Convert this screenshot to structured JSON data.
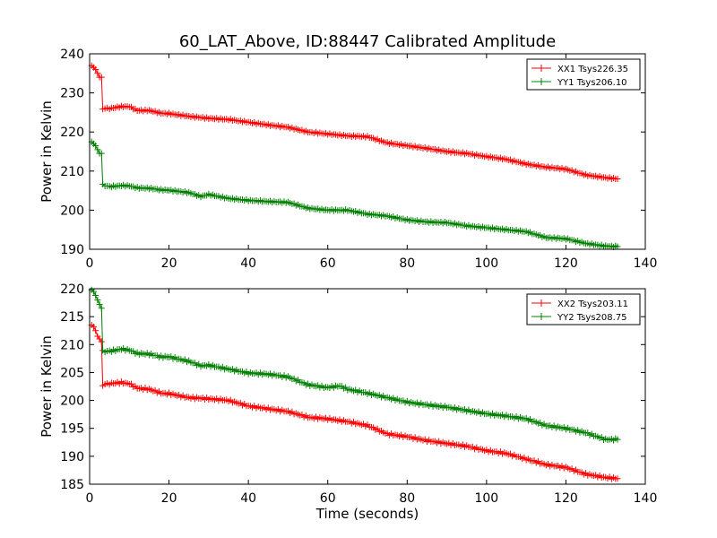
{
  "title": "60_LAT_Above, ID:88447 Calibrated Amplitude",
  "chart_data": [
    {
      "type": "line",
      "title": "60_LAT_Above, ID:88447 Calibrated Amplitude",
      "xlabel": "",
      "ylabel": "Power in Kelvin",
      "xlim": [
        0,
        140
      ],
      "ylim": [
        190,
        240
      ],
      "xticks": [
        "0",
        "20",
        "40",
        "60",
        "80",
        "100",
        "120",
        "140"
      ],
      "yticks": [
        "190",
        "200",
        "210",
        "220",
        "230",
        "240"
      ],
      "grid": false,
      "legend_position": "top-right",
      "series": [
        {
          "name": "XX1 Tsys226.35",
          "color": "#ff0000",
          "marker": "plus",
          "points": [
            [
              0.5,
              237.0
            ],
            [
              1.0,
              236.5
            ],
            [
              1.5,
              236.0
            ],
            [
              2.0,
              235.0
            ],
            [
              2.5,
              234.0
            ],
            [
              3.0,
              234.0
            ],
            [
              3.3,
              226.0
            ],
            [
              5,
              226.0
            ],
            [
              8,
              226.5
            ],
            [
              10,
              226.5
            ],
            [
              12,
              225.5
            ],
            [
              15,
              225.5
            ],
            [
              18,
              224.8
            ],
            [
              20,
              224.7
            ],
            [
              25,
              224.0
            ],
            [
              30,
              223.5
            ],
            [
              35,
              223.2
            ],
            [
              40,
              222.5
            ],
            [
              45,
              221.8
            ],
            [
              50,
              221.2
            ],
            [
              55,
              220.0
            ],
            [
              60,
              219.5
            ],
            [
              65,
              219.0
            ],
            [
              70,
              218.8
            ],
            [
              75,
              217.2
            ],
            [
              80,
              216.5
            ],
            [
              85,
              215.8
            ],
            [
              90,
              215.0
            ],
            [
              95,
              214.5
            ],
            [
              100,
              213.7
            ],
            [
              105,
              213.0
            ],
            [
              110,
              211.8
            ],
            [
              115,
              211.0
            ],
            [
              120,
              210.5
            ],
            [
              125,
              209.0
            ],
            [
              130,
              208.3
            ],
            [
              133,
              208.0
            ]
          ]
        },
        {
          "name": "YY1 Tsys206.10",
          "color": "#008000",
          "marker": "plus",
          "points": [
            [
              0.5,
              217.5
            ],
            [
              1.0,
              217.0
            ],
            [
              1.5,
              216.5
            ],
            [
              2.0,
              215.5
            ],
            [
              2.5,
              214.5
            ],
            [
              3.0,
              214.5
            ],
            [
              3.3,
              206.5
            ],
            [
              5,
              206.0
            ],
            [
              8,
              206.3
            ],
            [
              10,
              206.2
            ],
            [
              12,
              205.7
            ],
            [
              15,
              205.6
            ],
            [
              18,
              205.2
            ],
            [
              20,
              205.1
            ],
            [
              25,
              204.5
            ],
            [
              28,
              203.5
            ],
            [
              30,
              204.0
            ],
            [
              35,
              203.0
            ],
            [
              40,
              202.5
            ],
            [
              45,
              202.2
            ],
            [
              50,
              202.0
            ],
            [
              55,
              200.5
            ],
            [
              60,
              200.0
            ],
            [
              65,
              200.0
            ],
            [
              70,
              199.0
            ],
            [
              75,
              198.5
            ],
            [
              80,
              197.5
            ],
            [
              85,
              197.0
            ],
            [
              90,
              196.8
            ],
            [
              95,
              196.0
            ],
            [
              100,
              195.5
            ],
            [
              105,
              195.0
            ],
            [
              110,
              194.5
            ],
            [
              115,
              193.0
            ],
            [
              120,
              192.7
            ],
            [
              125,
              191.5
            ],
            [
              130,
              190.8
            ],
            [
              133,
              190.7
            ]
          ]
        }
      ]
    },
    {
      "type": "line",
      "title": "",
      "xlabel": "Time (seconds)",
      "ylabel": "Power in Kelvin",
      "xlim": [
        0,
        140
      ],
      "ylim": [
        185,
        220
      ],
      "xticks": [
        "0",
        "20",
        "40",
        "60",
        "80",
        "100",
        "120",
        "140"
      ],
      "yticks": [
        "185",
        "190",
        "195",
        "200",
        "205",
        "210",
        "215",
        "220"
      ],
      "grid": false,
      "legend_position": "top-right",
      "series": [
        {
          "name": "XX2 Tsys203.11",
          "color": "#ff0000",
          "marker": "plus",
          "points": [
            [
              0.5,
              213.5
            ],
            [
              1.0,
              213.2
            ],
            [
              1.5,
              212.5
            ],
            [
              2.0,
              211.5
            ],
            [
              2.5,
              211.0
            ],
            [
              3.0,
              210.5
            ],
            [
              3.3,
              202.8
            ],
            [
              5,
              203.0
            ],
            [
              8,
              203.2
            ],
            [
              10,
              203.0
            ],
            [
              12,
              202.2
            ],
            [
              15,
              202.0
            ],
            [
              18,
              201.3
            ],
            [
              20,
              201.2
            ],
            [
              25,
              200.5
            ],
            [
              30,
              200.3
            ],
            [
              35,
              200.0
            ],
            [
              40,
              199.0
            ],
            [
              45,
              198.5
            ],
            [
              50,
              198.0
            ],
            [
              55,
              197.0
            ],
            [
              60,
              196.7
            ],
            [
              65,
              196.2
            ],
            [
              70,
              195.5
            ],
            [
              75,
              194.0
            ],
            [
              80,
              193.5
            ],
            [
              85,
              192.8
            ],
            [
              90,
              192.3
            ],
            [
              95,
              191.8
            ],
            [
              100,
              191.0
            ],
            [
              105,
              190.5
            ],
            [
              110,
              189.5
            ],
            [
              115,
              188.5
            ],
            [
              120,
              188.0
            ],
            [
              125,
              186.8
            ],
            [
              130,
              186.2
            ],
            [
              133,
              186.0
            ]
          ]
        },
        {
          "name": "YY2 Tsys208.75",
          "color": "#008000",
          "marker": "plus",
          "points": [
            [
              0.5,
              219.8
            ],
            [
              1.0,
              219.5
            ],
            [
              1.5,
              218.8
            ],
            [
              2.0,
              218.0
            ],
            [
              2.5,
              217.2
            ],
            [
              3.0,
              216.5
            ],
            [
              3.3,
              208.8
            ],
            [
              5,
              208.8
            ],
            [
              8,
              209.2
            ],
            [
              10,
              209.0
            ],
            [
              12,
              208.4
            ],
            [
              15,
              208.3
            ],
            [
              18,
              207.8
            ],
            [
              20,
              207.8
            ],
            [
              25,
              207.0
            ],
            [
              28,
              206.2
            ],
            [
              30,
              206.3
            ],
            [
              35,
              205.6
            ],
            [
              40,
              204.9
            ],
            [
              45,
              204.7
            ],
            [
              50,
              204.2
            ],
            [
              55,
              202.8
            ],
            [
              60,
              202.3
            ],
            [
              63,
              202.6
            ],
            [
              65,
              202.0
            ],
            [
              70,
              201.3
            ],
            [
              75,
              200.5
            ],
            [
              80,
              199.7
            ],
            [
              85,
              199.2
            ],
            [
              90,
              198.8
            ],
            [
              95,
              198.2
            ],
            [
              100,
              197.6
            ],
            [
              105,
              197.2
            ],
            [
              110,
              196.7
            ],
            [
              115,
              195.5
            ],
            [
              120,
              195.0
            ],
            [
              125,
              194.2
            ],
            [
              130,
              193.0
            ],
            [
              133,
              193.0
            ]
          ]
        }
      ]
    }
  ]
}
